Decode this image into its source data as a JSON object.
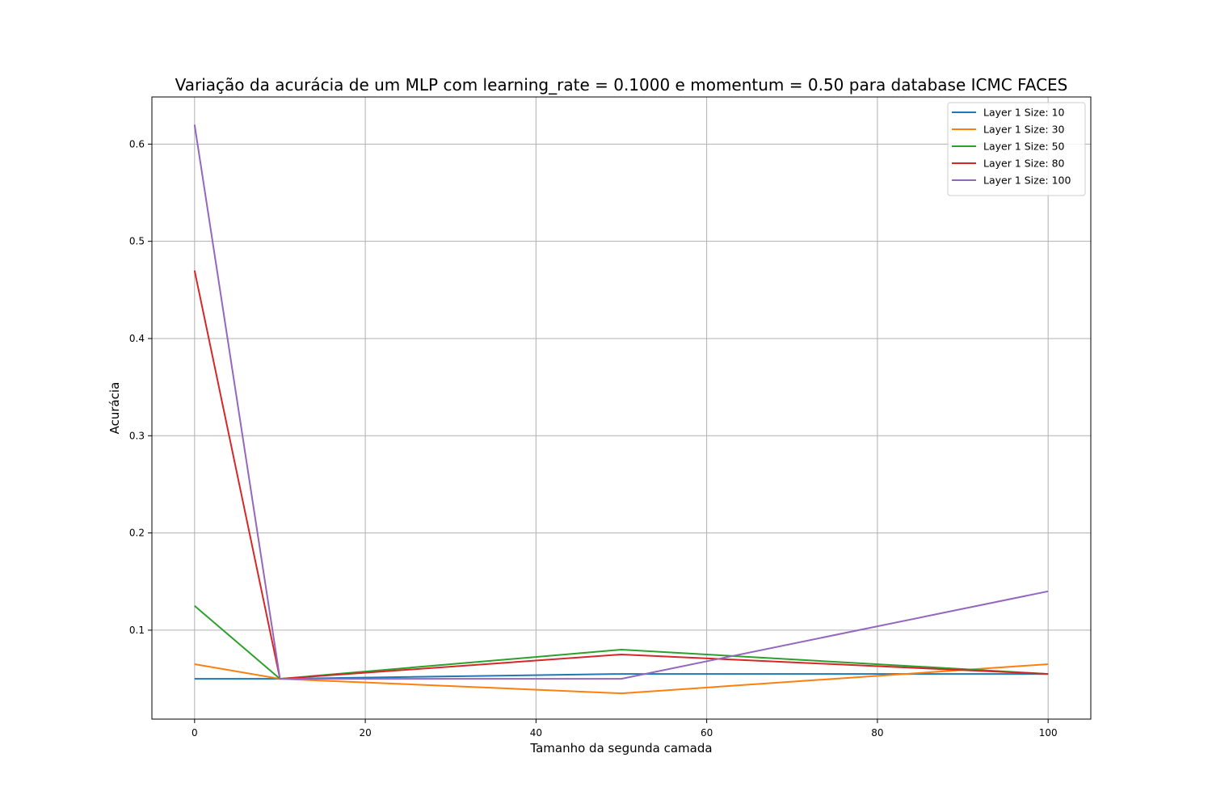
{
  "chart_data": {
    "type": "line",
    "title": "Variação da acurácia de um MLP com learning_rate = 0.1000 e momentum = 0.50 para database ICMC FACES",
    "xlabel": "Tamanho da segunda camada",
    "ylabel": "Acurácia",
    "x": [
      0,
      10,
      50,
      100
    ],
    "xlim": [
      -5,
      105
    ],
    "ylim": [
      0.0085,
      0.6485
    ],
    "xticks": [
      "0",
      "20",
      "40",
      "60",
      "80",
      "100"
    ],
    "xtick_values": [
      0,
      20,
      40,
      60,
      80,
      100
    ],
    "yticks": [
      "0.1",
      "0.2",
      "0.3",
      "0.4",
      "0.5",
      "0.6"
    ],
    "ytick_values": [
      0.1,
      0.2,
      0.3,
      0.4,
      0.5,
      0.6
    ],
    "grid": true,
    "legend_position": "top-right",
    "series": [
      {
        "name": "Layer 1 Size: 10",
        "color": "#1f77b4",
        "values": [
          0.05,
          0.05,
          0.055,
          0.055
        ]
      },
      {
        "name": "Layer 1 Size: 30",
        "color": "#ff7f0e",
        "values": [
          0.065,
          0.05,
          0.035,
          0.065
        ]
      },
      {
        "name": "Layer 1 Size: 50",
        "color": "#2ca02c",
        "values": [
          0.125,
          0.05,
          0.08,
          0.055
        ]
      },
      {
        "name": "Layer 1 Size: 80",
        "color": "#d62728",
        "values": [
          0.47,
          0.05,
          0.075,
          0.055
        ]
      },
      {
        "name": "Layer 1 Size: 100",
        "color": "#9467bd",
        "values": [
          0.62,
          0.05,
          0.05,
          0.14
        ]
      }
    ]
  }
}
